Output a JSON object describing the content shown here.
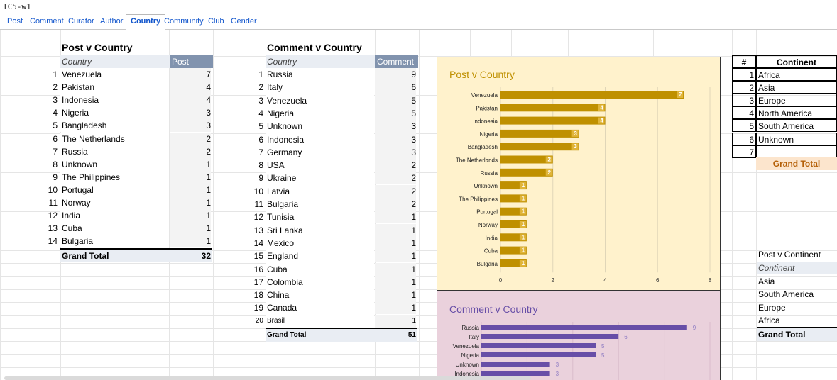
{
  "window_title": "TC5-w1",
  "tabs": [
    "Post",
    "Comment",
    "Curator",
    "Author",
    "Country",
    "Community",
    "Club",
    "Gender"
  ],
  "active_tab": "Country",
  "post_table": {
    "heading": "Post v Country",
    "col_country": "Country",
    "col_value": "Post",
    "rows": [
      {
        "rank": "1",
        "country": "Venezuela",
        "value": "7"
      },
      {
        "rank": "2",
        "country": "Pakistan",
        "value": "4"
      },
      {
        "rank": "3",
        "country": "Indonesia",
        "value": "4"
      },
      {
        "rank": "4",
        "country": "Nigeria",
        "value": "3"
      },
      {
        "rank": "5",
        "country": "Bangladesh",
        "value": "3"
      },
      {
        "rank": "6",
        "country": "The Netherlands",
        "value": "2"
      },
      {
        "rank": "7",
        "country": "Russia",
        "value": "2"
      },
      {
        "rank": "8",
        "country": "Unknown",
        "value": "1"
      },
      {
        "rank": "9",
        "country": "The Philippines",
        "value": "1"
      },
      {
        "rank": "10",
        "country": "Portugal",
        "value": "1"
      },
      {
        "rank": "11",
        "country": "Norway",
        "value": "1"
      },
      {
        "rank": "12",
        "country": "India",
        "value": "1"
      },
      {
        "rank": "13",
        "country": "Cuba",
        "value": "1"
      },
      {
        "rank": "14",
        "country": "Bulgaria",
        "value": "1"
      }
    ],
    "total_label": "Grand Total",
    "total_value": "32"
  },
  "comment_table": {
    "heading": "Comment v Country",
    "col_country": "Country",
    "col_value": "Comment",
    "rows": [
      {
        "rank": "1",
        "country": "Russia",
        "value": "9"
      },
      {
        "rank": "2",
        "country": "Italy",
        "value": "6"
      },
      {
        "rank": "3",
        "country": "Venezuela",
        "value": "5"
      },
      {
        "rank": "4",
        "country": "Nigeria",
        "value": "5"
      },
      {
        "rank": "5",
        "country": "Unknown",
        "value": "3"
      },
      {
        "rank": "6",
        "country": "Indonesia",
        "value": "3"
      },
      {
        "rank": "7",
        "country": "Germany",
        "value": "3"
      },
      {
        "rank": "8",
        "country": "USA",
        "value": "2"
      },
      {
        "rank": "9",
        "country": "Ukraine",
        "value": "2"
      },
      {
        "rank": "10",
        "country": "Latvia",
        "value": "2"
      },
      {
        "rank": "11",
        "country": "Bulgaria",
        "value": "2"
      },
      {
        "rank": "12",
        "country": "Tunisia",
        "value": "1"
      },
      {
        "rank": "13",
        "country": "Sri Lanka",
        "value": "1"
      },
      {
        "rank": "14",
        "country": "Mexico",
        "value": "1"
      },
      {
        "rank": "15",
        "country": "England",
        "value": "1"
      },
      {
        "rank": "16",
        "country": "Cuba",
        "value": "1"
      },
      {
        "rank": "17",
        "country": "Colombia",
        "value": "1"
      },
      {
        "rank": "18",
        "country": "China",
        "value": "1"
      },
      {
        "rank": "19",
        "country": "Canada",
        "value": "1"
      },
      {
        "rank": "20",
        "country": "Brasil",
        "value": "1"
      }
    ],
    "total_label": "Grand Total",
    "total_value": "51"
  },
  "continent_table": {
    "col_num": "#",
    "col_continent": "Continent",
    "rows": [
      {
        "num": "1",
        "name": "Africa"
      },
      {
        "num": "2",
        "name": "Asia"
      },
      {
        "num": "3",
        "name": "Europe"
      },
      {
        "num": "4",
        "name": "North America"
      },
      {
        "num": "5",
        "name": "South America"
      },
      {
        "num": "6",
        "name": "Unknown"
      },
      {
        "num": "7",
        "name": ""
      }
    ],
    "total_label": "Grand Total"
  },
  "post_continent": {
    "heading": "Post v Continent",
    "col": "Continent",
    "rows": [
      "Asia",
      "South America",
      "Europe",
      "Africa"
    ],
    "total_label": "Grand Total"
  },
  "colors": {
    "post_bar": "#bf9000",
    "comment_bar": "#674ea7",
    "post_chart_bg": "#fff2cc",
    "comment_chart_bg": "#ead1dc",
    "post_title": "#bf9000",
    "comment_title": "#674ea7",
    "tab_link": "#1155cc"
  },
  "chart_data": [
    {
      "type": "bar",
      "title": "Post v Country",
      "categories": [
        "Venezuela",
        "Pakistan",
        "Indonesia",
        "Nigeria",
        "Bangladesh",
        "The Netherlands",
        "Russia",
        "Unknown",
        "The Philippines",
        "Portugal",
        "Norway",
        "India",
        "Cuba",
        "Bulgaria"
      ],
      "values": [
        7,
        4,
        4,
        3,
        3,
        2,
        2,
        1,
        1,
        1,
        1,
        1,
        1,
        1
      ],
      "xlim": [
        0,
        8
      ],
      "ticks": [
        "0",
        "2",
        "4",
        "6",
        "8"
      ],
      "orientation": "horizontal",
      "grid": true
    },
    {
      "type": "bar",
      "title": "Comment v Country",
      "categories": [
        "Russia",
        "Italy",
        "Venezuela",
        "Nigeria",
        "Unknown",
        "Indonesia"
      ],
      "values": [
        9,
        6,
        5,
        5,
        3,
        3
      ],
      "xlim": [
        0,
        10
      ],
      "orientation": "horizontal",
      "grid": true
    }
  ]
}
